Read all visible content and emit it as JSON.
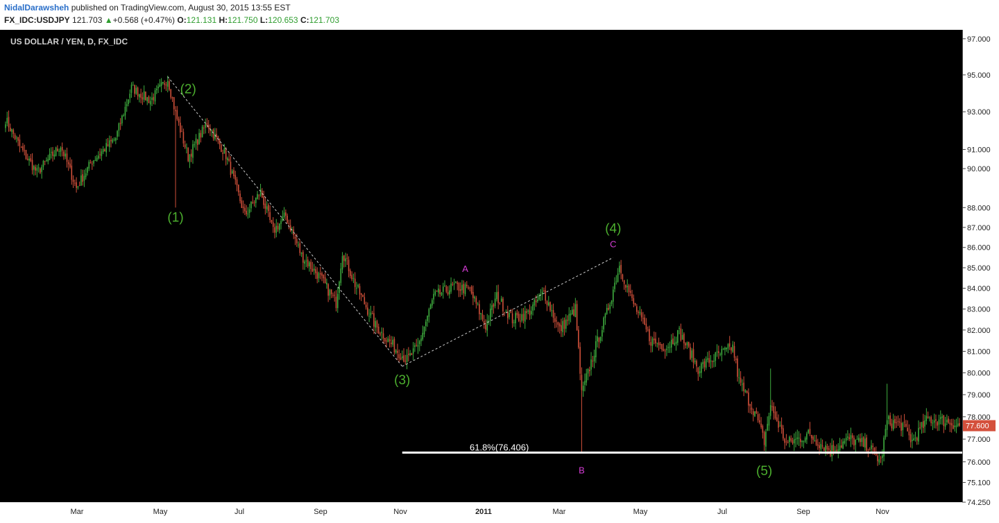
{
  "header": {
    "author": "NidalDarawsheh",
    "published_text": " published on TradingView.com, August 30, 2015 13:55 EST",
    "symbol": "FX_IDC:USDJPY",
    "last": "121.703",
    "change_arrow": "▲",
    "change": "+0.568 (+0.47%)",
    "o_label": "O:",
    "o_value": "121.131",
    "h_label": "H:",
    "h_value": "121.750",
    "l_label": "L:",
    "l_value": "120.653",
    "c_label": "C:",
    "c_value": "121.703"
  },
  "colors": {
    "background": "#000000",
    "bull": "#3fae3f",
    "bear": "#d0503a",
    "wave_label": "#4caf2e",
    "abc_label": "#d63cd6",
    "price_tag": "#d4503c",
    "fib_line": "#ffffff"
  },
  "chart_data": {
    "type": "candlestick",
    "title": "US DOLLAR / YEN, D, FX_IDC",
    "x_labels": [
      "Mar",
      "May",
      "Jul",
      "Sep",
      "Nov",
      "2011",
      "Mar",
      "May",
      "Jul",
      "Sep",
      "Nov"
    ],
    "y_ticks": [
      "97.000",
      "95.000",
      "93.000",
      "91.000",
      "90.000",
      "88.000",
      "87.000",
      "86.000",
      "85.000",
      "84.000",
      "83.000",
      "82.000",
      "81.000",
      "80.000",
      "79.000",
      "78.000",
      "77.000",
      "76.000",
      "75.100",
      "74.250"
    ],
    "y_range": [
      74.25,
      97.5
    ],
    "y_scale": "log",
    "last_price": "77.600",
    "path_points": [
      {
        "i": 0,
        "p": 92.6
      },
      {
        "i": 10,
        "p": 91.0
      },
      {
        "i": 20,
        "p": 89.8
      },
      {
        "i": 35,
        "p": 91.2
      },
      {
        "i": 45,
        "p": 89.0
      },
      {
        "i": 55,
        "p": 90.4
      },
      {
        "i": 70,
        "p": 91.6
      },
      {
        "i": 80,
        "p": 94.3
      },
      {
        "i": 92,
        "p": 93.6
      },
      {
        "i": 103,
        "p": 94.8
      },
      {
        "i": 108,
        "p": 92.9
      },
      {
        "i": 116,
        "p": 90.6
      },
      {
        "i": 128,
        "p": 92.4
      },
      {
        "i": 140,
        "p": 90.7
      },
      {
        "i": 152,
        "p": 87.6
      },
      {
        "i": 162,
        "p": 88.8
      },
      {
        "i": 170,
        "p": 86.8
      },
      {
        "i": 178,
        "p": 87.6
      },
      {
        "i": 188,
        "p": 85.6
      },
      {
        "i": 200,
        "p": 84.5
      },
      {
        "i": 210,
        "p": 83.3
      },
      {
        "i": 214,
        "p": 85.8
      },
      {
        "i": 222,
        "p": 84.2
      },
      {
        "i": 235,
        "p": 82.2
      },
      {
        "i": 248,
        "p": 81.1
      },
      {
        "i": 255,
        "p": 80.6
      },
      {
        "i": 262,
        "p": 81.2
      },
      {
        "i": 272,
        "p": 83.6
      },
      {
        "i": 285,
        "p": 84.1
      },
      {
        "i": 295,
        "p": 83.9
      },
      {
        "i": 305,
        "p": 82.2
      },
      {
        "i": 312,
        "p": 83.6
      },
      {
        "i": 322,
        "p": 82.5
      },
      {
        "i": 332,
        "p": 82.8
      },
      {
        "i": 342,
        "p": 83.8
      },
      {
        "i": 352,
        "p": 82.0
      },
      {
        "i": 362,
        "p": 83.0
      },
      {
        "i": 366,
        "p": 79.0
      },
      {
        "i": 374,
        "p": 81.0
      },
      {
        "i": 382,
        "p": 82.8
      },
      {
        "i": 390,
        "p": 85.1
      },
      {
        "i": 398,
        "p": 83.4
      },
      {
        "i": 410,
        "p": 81.5
      },
      {
        "i": 420,
        "p": 81.2
      },
      {
        "i": 428,
        "p": 81.9
      },
      {
        "i": 440,
        "p": 80.2
      },
      {
        "i": 450,
        "p": 80.7
      },
      {
        "i": 462,
        "p": 81.2
      },
      {
        "i": 466,
        "p": 79.6
      },
      {
        "i": 476,
        "p": 78.2
      },
      {
        "i": 482,
        "p": 76.9
      },
      {
        "i": 486,
        "p": 78.5
      },
      {
        "i": 496,
        "p": 76.8
      },
      {
        "i": 510,
        "p": 77.2
      },
      {
        "i": 524,
        "p": 76.5
      },
      {
        "i": 536,
        "p": 77.0
      },
      {
        "i": 548,
        "p": 76.7
      },
      {
        "i": 556,
        "p": 76.0
      },
      {
        "i": 560,
        "p": 77.8
      },
      {
        "i": 570,
        "p": 77.6
      },
      {
        "i": 576,
        "p": 76.9
      },
      {
        "i": 586,
        "p": 77.9
      },
      {
        "i": 598,
        "p": 77.8
      },
      {
        "i": 606,
        "p": 77.6
      }
    ],
    "waves": [
      {
        "label": "(1)",
        "i": 108,
        "p": 88.2,
        "pos": "below"
      },
      {
        "label": "(2)",
        "i": 110,
        "p": 94.9,
        "pos": "right"
      },
      {
        "label": "(3)",
        "i": 252,
        "p": 80.3,
        "pos": "below"
      },
      {
        "label": "(4)",
        "i": 386,
        "p": 85.7,
        "pos": "above"
      },
      {
        "label": "(5)",
        "i": 482,
        "p": 76.2,
        "pos": "below"
      }
    ],
    "abc": [
      {
        "label": "A",
        "i": 292,
        "p": 84.8
      },
      {
        "label": "B",
        "i": 366,
        "p": 75.5
      },
      {
        "label": "C",
        "i": 386,
        "p": 86.0
      }
    ],
    "trendlines": [
      {
        "from": {
          "i": 103,
          "p": 94.9
        },
        "to": {
          "i": 252,
          "p": 80.3
        }
      },
      {
        "from": {
          "i": 252,
          "p": 80.3
        },
        "to": {
          "i": 386,
          "p": 85.5
        }
      }
    ],
    "fib": {
      "label": "61.8%(76.406)",
      "level": 76.406,
      "from_i": 252
    }
  }
}
